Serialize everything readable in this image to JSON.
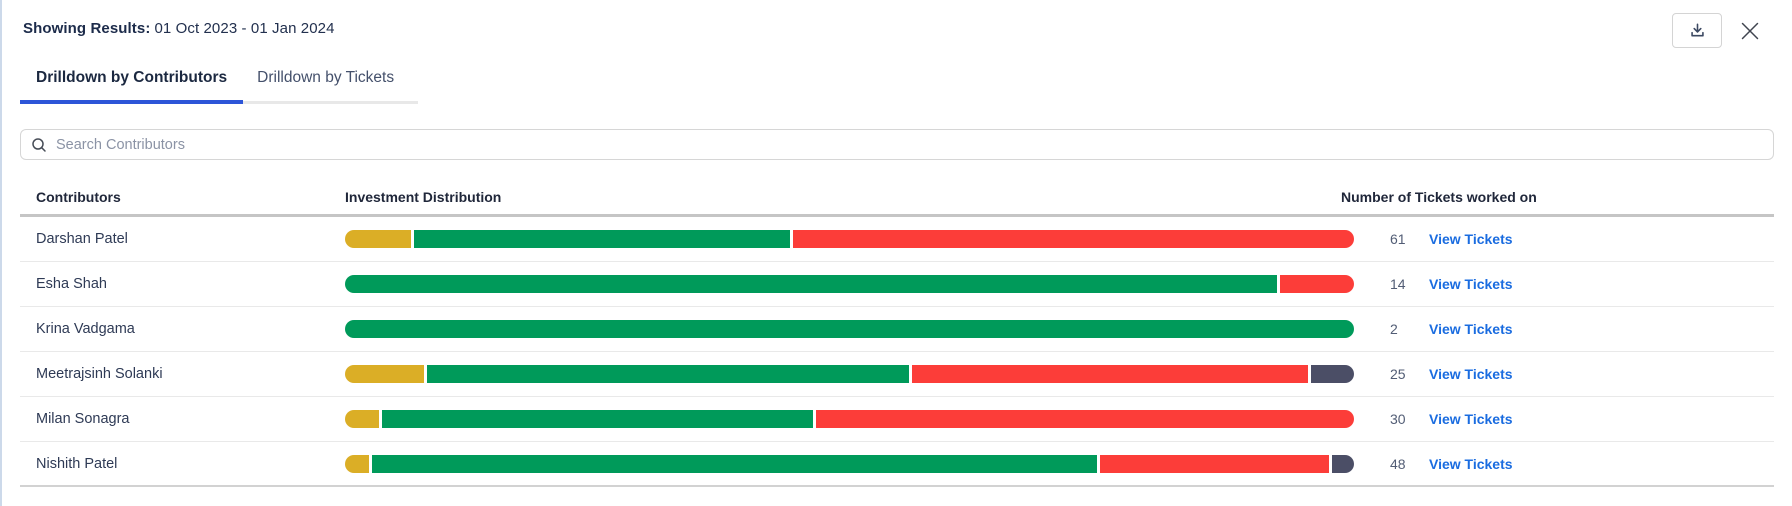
{
  "header": {
    "label": "Showing Results:",
    "date_range": "01 Oct 2023 - 01 Jan 2024"
  },
  "tabs": [
    {
      "label": "Drilldown by Contributors",
      "active": true
    },
    {
      "label": "Drilldown by Tickets",
      "active": false
    }
  ],
  "search": {
    "placeholder": "Search Contributors"
  },
  "table": {
    "columns": [
      "Contributors",
      "Investment Distribution",
      "Number of Tickets worked on"
    ],
    "view_tickets_label": "View Tickets",
    "rows": [
      {
        "name": "Darshan Patel",
        "tickets": "61",
        "segments": [
          {
            "color": "bar_yellow",
            "pct": 6.5
          },
          {
            "color": "bar_green",
            "pct": 37.2
          },
          {
            "color": "bar_red",
            "pct": 55.4
          }
        ]
      },
      {
        "name": "Esha Shah",
        "tickets": "14",
        "segments": [
          {
            "color": "bar_green",
            "pct": 92.6
          },
          {
            "color": "bar_red",
            "pct": 7.4
          }
        ]
      },
      {
        "name": "Krina Vadgama",
        "tickets": "2",
        "segments": [
          {
            "color": "bar_green",
            "pct": 100
          }
        ]
      },
      {
        "name": "Meetrajsinh Solanki",
        "tickets": "25",
        "segments": [
          {
            "color": "bar_yellow",
            "pct": 7.8
          },
          {
            "color": "bar_green",
            "pct": 47.7
          },
          {
            "color": "bar_red",
            "pct": 39.2
          },
          {
            "color": "bar_dark",
            "pct": 4.3
          }
        ]
      },
      {
        "name": "Milan Sonagra",
        "tickets": "30",
        "segments": [
          {
            "color": "bar_yellow",
            "pct": 3.4
          },
          {
            "color": "bar_green",
            "pct": 42.7
          },
          {
            "color": "bar_red",
            "pct": 53.4
          }
        ]
      },
      {
        "name": "Nishith Patel",
        "tickets": "48",
        "segments": [
          {
            "color": "bar_yellow",
            "pct": 2.4
          },
          {
            "color": "bar_green",
            "pct": 71.7
          },
          {
            "color": "bar_red",
            "pct": 22.6
          },
          {
            "color": "bar_dark",
            "pct": 2.2
          }
        ]
      }
    ]
  },
  "icons": {
    "download": "download-icon",
    "close": "close-icon",
    "search": "search-icon"
  },
  "colors": {
    "bar_yellow": "#DBAE26",
    "bar_green": "#009A5A",
    "bar_red": "#FC3D39",
    "bar_dark": "#4B4E66",
    "link_blue": "#1A6CE0",
    "tab_underline": "#2D55D8"
  }
}
